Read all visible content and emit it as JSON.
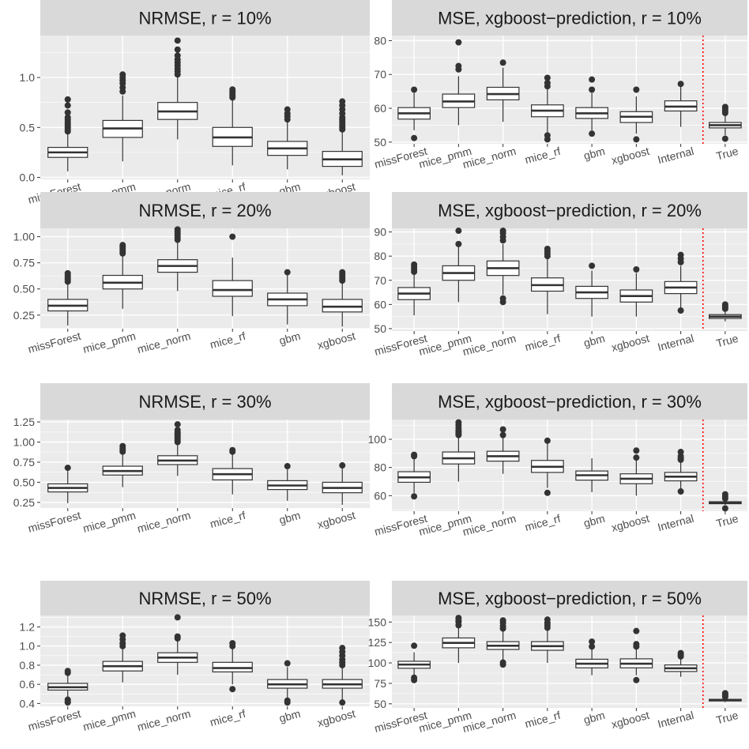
{
  "colors": {
    "panel_background": "#ebebeb",
    "strip_background": "#d9d9d9",
    "grid_major": "#ffffff",
    "box_stroke": "#333333",
    "box_fill": "#ffffff",
    "outlier": "#333333",
    "reference_line": "#ff0000"
  },
  "chart_data": [
    {
      "type": "boxplot",
      "title": "NRMSE, r = 10%",
      "categories": [
        "missForest",
        "mice_pmm",
        "mice_norm",
        "mice_rf",
        "gbm",
        "xgboost"
      ],
      "ylim": [
        -0.02,
        1.42
      ],
      "yticks": [
        0.0,
        0.5,
        1.0
      ],
      "ytick_labels": [
        "0.0",
        "0.5",
        "1.0"
      ],
      "boxes": [
        {
          "whislo": 0.06,
          "q1": 0.2,
          "med": 0.25,
          "q3": 0.3,
          "whishi": 0.44,
          "outliers": [
            0.46,
            0.48,
            0.5,
            0.52,
            0.54,
            0.56,
            0.58,
            0.6,
            0.65,
            0.72,
            0.78
          ]
        },
        {
          "whislo": 0.16,
          "q1": 0.4,
          "med": 0.49,
          "q3": 0.57,
          "whishi": 0.82,
          "outliers": [
            0.86,
            0.9,
            0.94,
            0.97,
            1.0,
            1.03
          ]
        },
        {
          "whislo": 0.38,
          "q1": 0.58,
          "med": 0.66,
          "q3": 0.75,
          "whishi": 1.0,
          "outliers": [
            1.03,
            1.06,
            1.09,
            1.12,
            1.15,
            1.18,
            1.22,
            1.28,
            1.37
          ]
        },
        {
          "whislo": 0.12,
          "q1": 0.31,
          "med": 0.4,
          "q3": 0.5,
          "whishi": 0.78,
          "outliers": [
            0.8,
            0.82,
            0.84,
            0.86,
            0.88
          ]
        },
        {
          "whislo": 0.08,
          "q1": 0.22,
          "med": 0.29,
          "q3": 0.36,
          "whishi": 0.55,
          "outliers": [
            0.58,
            0.61,
            0.64,
            0.68
          ]
        },
        {
          "whislo": 0.02,
          "q1": 0.11,
          "med": 0.18,
          "q3": 0.26,
          "whishi": 0.46,
          "outliers": [
            0.48,
            0.5,
            0.52,
            0.54,
            0.56,
            0.58,
            0.6,
            0.64,
            0.68,
            0.72,
            0.76
          ]
        }
      ]
    },
    {
      "type": "boxplot",
      "title": "MSE, xgboost−prediction, r = 10%",
      "categories": [
        "missForest",
        "mice_pmm",
        "mice_norm",
        "mice_rf",
        "gbm",
        "xgboost",
        "Internal",
        "True"
      ],
      "ylim": [
        49.5,
        81.5
      ],
      "yticks": [
        50,
        60,
        70,
        80
      ],
      "ytick_labels": [
        "50",
        "60",
        "70",
        "80"
      ],
      "reference_line_after_category": "Internal",
      "boxes": [
        {
          "whislo": 53.5,
          "q1": 56.8,
          "med": 58.5,
          "q3": 60.2,
          "whishi": 64.5,
          "outliers": [
            65.5,
            51.2
          ]
        },
        {
          "whislo": 55.0,
          "q1": 60.2,
          "med": 62.0,
          "q3": 64.2,
          "whishi": 69.5,
          "outliers": [
            71.5,
            72.5,
            79.5
          ]
        },
        {
          "whislo": 56.0,
          "q1": 62.5,
          "med": 64.2,
          "q3": 66.2,
          "whishi": 72.0,
          "outliers": [
            73.5
          ]
        },
        {
          "whislo": 53.0,
          "q1": 57.5,
          "med": 59.3,
          "q3": 61.0,
          "whishi": 66.0,
          "outliers": [
            66.5,
            67.5,
            69.0,
            52.0,
            50.8
          ]
        },
        {
          "whislo": 53.5,
          "q1": 57.0,
          "med": 58.5,
          "q3": 60.2,
          "whishi": 64.5,
          "outliers": [
            65.5,
            68.5,
            52.5
          ]
        },
        {
          "whislo": 52.5,
          "q1": 55.8,
          "med": 57.5,
          "q3": 59.0,
          "whishi": 63.5,
          "outliers": [
            65.5,
            50.8
          ]
        },
        {
          "whislo": 54.5,
          "q1": 59.2,
          "med": 60.5,
          "q3": 62.2,
          "whishi": 66.5,
          "outliers": [
            67.2
          ]
        },
        {
          "whislo": 52.0,
          "q1": 54.2,
          "med": 55.0,
          "q3": 55.8,
          "whishi": 58.0,
          "outliers": [
            58.6,
            59.2,
            59.8,
            60.4,
            51.0
          ]
        }
      ]
    },
    {
      "type": "boxplot",
      "title": "NRMSE, r = 20%",
      "categories": [
        "missForest",
        "mice_pmm",
        "mice_norm",
        "mice_rf",
        "gbm",
        "xgboost"
      ],
      "ylim": [
        0.12,
        1.08
      ],
      "yticks": [
        0.25,
        0.5,
        0.75,
        1.0
      ],
      "ytick_labels": [
        "0.25",
        "0.50",
        "0.75",
        "1.00"
      ],
      "boxes": [
        {
          "whislo": 0.15,
          "q1": 0.29,
          "med": 0.34,
          "q3": 0.4,
          "whishi": 0.55,
          "outliers": [
            0.57,
            0.59,
            0.61,
            0.63,
            0.65
          ]
        },
        {
          "whislo": 0.31,
          "q1": 0.5,
          "med": 0.56,
          "q3": 0.63,
          "whishi": 0.82,
          "outliers": [
            0.84,
            0.86,
            0.88,
            0.9,
            0.92
          ]
        },
        {
          "whislo": 0.48,
          "q1": 0.66,
          "med": 0.72,
          "q3": 0.78,
          "whishi": 0.95,
          "outliers": [
            0.97,
            0.99,
            1.01,
            1.03,
            1.05,
            1.07
          ]
        },
        {
          "whislo": 0.24,
          "q1": 0.43,
          "med": 0.49,
          "q3": 0.58,
          "whishi": 0.8,
          "outliers": [
            1.0
          ]
        },
        {
          "whislo": 0.16,
          "q1": 0.34,
          "med": 0.4,
          "q3": 0.46,
          "whishi": 0.65,
          "outliers": [
            0.66
          ]
        },
        {
          "whislo": 0.14,
          "q1": 0.28,
          "med": 0.33,
          "q3": 0.4,
          "whishi": 0.56,
          "outliers": [
            0.58,
            0.6,
            0.62,
            0.64,
            0.66
          ]
        }
      ]
    },
    {
      "type": "boxplot",
      "title": "MSE, xgboost−prediction, r = 20%",
      "categories": [
        "missForest",
        "mice_pmm",
        "mice_norm",
        "mice_rf",
        "gbm",
        "xgboost",
        "Internal",
        "True"
      ],
      "ylim": [
        49,
        91.5
      ],
      "yticks": [
        50,
        60,
        70,
        80,
        90
      ],
      "ytick_labels": [
        "50",
        "60",
        "70",
        "80",
        "90"
      ],
      "reference_line_after_category": "Internal",
      "boxes": [
        {
          "whislo": 55.5,
          "q1": 62.0,
          "med": 64.5,
          "q3": 67.0,
          "whishi": 72.5,
          "outliers": [
            73.5,
            74.5,
            75.5,
            76.5
          ]
        },
        {
          "whislo": 61.0,
          "q1": 70.0,
          "med": 73.0,
          "q3": 76.0,
          "whishi": 84.0,
          "outliers": [
            85.0,
            90.5
          ]
        },
        {
          "whislo": 64.0,
          "q1": 72.0,
          "med": 75.0,
          "q3": 78.0,
          "whishi": 85.0,
          "outliers": [
            86.5,
            88.0,
            89.5,
            90.5,
            62.5,
            61.0
          ]
        },
        {
          "whislo": 56.0,
          "q1": 65.5,
          "med": 68.0,
          "q3": 71.0,
          "whishi": 79.0,
          "outliers": [
            80.0,
            81.0,
            82.0,
            83.0
          ]
        },
        {
          "whislo": 55.0,
          "q1": 62.5,
          "med": 65.0,
          "q3": 67.5,
          "whishi": 74.0,
          "outliers": [
            76.0
          ]
        },
        {
          "whislo": 55.0,
          "q1": 61.0,
          "med": 63.5,
          "q3": 66.0,
          "whishi": 73.0,
          "outliers": [
            74.5
          ]
        },
        {
          "whislo": 58.5,
          "q1": 64.5,
          "med": 67.0,
          "q3": 69.5,
          "whishi": 76.0,
          "outliers": [
            77.5,
            79.0,
            80.5,
            57.5
          ]
        },
        {
          "whislo": 53.0,
          "q1": 54.2,
          "med": 55.0,
          "q3": 55.8,
          "whishi": 57.5,
          "outliers": [
            58.2,
            58.8,
            59.4,
            60.0
          ]
        }
      ]
    },
    {
      "type": "boxplot",
      "title": "NRMSE, r = 30%",
      "categories": [
        "missForest",
        "mice_pmm",
        "mice_norm",
        "mice_rf",
        "gbm",
        "xgboost"
      ],
      "ylim": [
        0.18,
        1.28
      ],
      "yticks": [
        0.25,
        0.5,
        0.75,
        1.0,
        1.25
      ],
      "ytick_labels": [
        "0.25",
        "0.50",
        "0.75",
        "1.00",
        "1.25"
      ],
      "boxes": [
        {
          "whislo": 0.24,
          "q1": 0.38,
          "med": 0.43,
          "q3": 0.48,
          "whishi": 0.64,
          "outliers": [
            0.68
          ]
        },
        {
          "whislo": 0.44,
          "q1": 0.59,
          "med": 0.64,
          "q3": 0.7,
          "whishi": 0.86,
          "outliers": [
            0.88,
            0.9,
            0.92,
            0.95
          ]
        },
        {
          "whislo": 0.58,
          "q1": 0.72,
          "med": 0.77,
          "q3": 0.83,
          "whishi": 0.99,
          "outliers": [
            1.0,
            1.02,
            1.04,
            1.06,
            1.08,
            1.1,
            1.12,
            1.15,
            1.22
          ]
        },
        {
          "whislo": 0.35,
          "q1": 0.53,
          "med": 0.6,
          "q3": 0.67,
          "whishi": 0.86,
          "outliers": [
            0.88,
            0.9
          ]
        },
        {
          "whislo": 0.27,
          "q1": 0.41,
          "med": 0.46,
          "q3": 0.52,
          "whishi": 0.66,
          "outliers": [
            0.7
          ]
        },
        {
          "whislo": 0.22,
          "q1": 0.37,
          "med": 0.43,
          "q3": 0.5,
          "whishi": 0.69,
          "outliers": [
            0.71
          ]
        }
      ]
    },
    {
      "type": "boxplot",
      "title": "MSE, xgboost−prediction, r = 30%",
      "categories": [
        "missForest",
        "mice_pmm",
        "mice_norm",
        "mice_rf",
        "gbm",
        "xgboost",
        "Internal",
        "True"
      ],
      "ylim": [
        49,
        114
      ],
      "yticks": [
        60,
        80,
        100
      ],
      "ytick_labels": [
        "60",
        "80",
        "100"
      ],
      "reference_line_after_category": "Internal",
      "boxes": [
        {
          "whislo": 62.0,
          "q1": 69.5,
          "med": 73.0,
          "q3": 77.0,
          "whishi": 87.0,
          "outliers": [
            88.0,
            89.0,
            59.5
          ]
        },
        {
          "whislo": 70.0,
          "q1": 82.5,
          "med": 86.5,
          "q3": 91.0,
          "whishi": 102.0,
          "outliers": [
            103.0,
            104.0,
            105.0,
            106.0,
            108.0,
            110.0,
            112.0
          ]
        },
        {
          "whislo": 75.5,
          "q1": 84.5,
          "med": 88.0,
          "q3": 91.5,
          "whishi": 101.0,
          "outliers": [
            103.0,
            107.0
          ]
        },
        {
          "whislo": 65.5,
          "q1": 76.5,
          "med": 80.5,
          "q3": 85.0,
          "whishi": 97.0,
          "outliers": [
            99.0,
            62.0
          ]
        },
        {
          "whislo": 62.5,
          "q1": 71.0,
          "med": 74.5,
          "q3": 77.5,
          "whishi": 86.5,
          "outliers": []
        },
        {
          "whislo": 60.0,
          "q1": 68.5,
          "med": 72.0,
          "q3": 75.5,
          "whishi": 85.0,
          "outliers": [
            87.0,
            92.0
          ]
        },
        {
          "whislo": 64.0,
          "q1": 70.5,
          "med": 73.5,
          "q3": 76.5,
          "whishi": 84.5,
          "outliers": [
            85.5,
            86.5,
            88.0,
            91.0,
            63.0
          ]
        },
        {
          "whislo": 53.5,
          "q1": 54.3,
          "med": 55.0,
          "q3": 55.7,
          "whishi": 57.0,
          "outliers": [
            58.0,
            59.5,
            61.0,
            51.0
          ]
        }
      ]
    },
    {
      "type": "boxplot",
      "title": "NRMSE, r = 50%",
      "categories": [
        "missForest",
        "mice_pmm",
        "mice_norm",
        "mice_rf",
        "gbm",
        "xgboost"
      ],
      "ylim": [
        0.37,
        1.32
      ],
      "yticks": [
        0.4,
        0.6,
        0.8,
        1.0,
        1.2
      ],
      "ytick_labels": [
        "0.4",
        "0.6",
        "0.8",
        "1.0",
        "1.2"
      ],
      "boxes": [
        {
          "whislo": 0.45,
          "q1": 0.54,
          "med": 0.57,
          "q3": 0.61,
          "whishi": 0.7,
          "outliers": [
            0.72,
            0.74,
            0.44,
            0.42,
            0.41
          ]
        },
        {
          "whislo": 0.62,
          "q1": 0.74,
          "med": 0.79,
          "q3": 0.84,
          "whishi": 0.98,
          "outliers": [
            1.0,
            1.03,
            1.07,
            1.11
          ]
        },
        {
          "whislo": 0.7,
          "q1": 0.83,
          "med": 0.88,
          "q3": 0.93,
          "whishi": 1.06,
          "outliers": [
            1.08,
            1.1,
            1.3
          ]
        },
        {
          "whislo": 0.6,
          "q1": 0.73,
          "med": 0.77,
          "q3": 0.83,
          "whishi": 0.98,
          "outliers": [
            1.0,
            1.03,
            0.55
          ]
        },
        {
          "whislo": 0.46,
          "q1": 0.56,
          "med": 0.6,
          "q3": 0.65,
          "whishi": 0.78,
          "outliers": [
            0.82,
            0.43,
            0.41
          ]
        },
        {
          "whislo": 0.44,
          "q1": 0.56,
          "med": 0.6,
          "q3": 0.65,
          "whishi": 0.78,
          "outliers": [
            0.8,
            0.83,
            0.86,
            0.9,
            0.94,
            0.98,
            0.41
          ]
        }
      ]
    },
    {
      "type": "boxplot",
      "title": "MSE, xgboost−prediction, r = 50%",
      "categories": [
        "missForest",
        "mice_pmm",
        "mice_norm",
        "mice_rf",
        "gbm",
        "xgboost",
        "Internal",
        "True"
      ],
      "ylim": [
        45,
        158
      ],
      "yticks": [
        50,
        75,
        100,
        125,
        150
      ],
      "ytick_labels": [
        "50",
        "75",
        "100",
        "125",
        "150"
      ],
      "reference_line_after_category": "Internal",
      "boxes": [
        {
          "whislo": 84.0,
          "q1": 93.5,
          "med": 98.0,
          "q3": 102.0,
          "whishi": 113.0,
          "outliers": [
            121.0,
            82.0,
            79.0
          ]
        },
        {
          "whislo": 100.0,
          "q1": 118.5,
          "med": 124.5,
          "q3": 130.5,
          "whishi": 143.0,
          "outliers": [
            146.0,
            150.0,
            152.0,
            155.0
          ]
        },
        {
          "whislo": 100.0,
          "q1": 116.5,
          "med": 121.0,
          "q3": 126.0,
          "whishi": 140.0,
          "outliers": [
            142.0,
            145.0,
            149.0,
            152.0,
            100.5,
            98.0
          ]
        },
        {
          "whislo": 100.0,
          "q1": 115.5,
          "med": 120.5,
          "q3": 126.0,
          "whishi": 140.0,
          "outliers": [
            143.0,
            146.0,
            149.0,
            153.0
          ]
        },
        {
          "whislo": 85.0,
          "q1": 94.0,
          "med": 99.0,
          "q3": 104.5,
          "whishi": 117.0,
          "outliers": [
            120.0,
            126.0
          ]
        },
        {
          "whislo": 85.0,
          "q1": 94.0,
          "med": 99.0,
          "q3": 105.0,
          "whishi": 118.0,
          "outliers": [
            120.0,
            123.0,
            139.0,
            79.0
          ]
        },
        {
          "whislo": 83.0,
          "q1": 89.5,
          "med": 93.5,
          "q3": 97.5,
          "whishi": 107.0,
          "outliers": [
            108.0,
            110.0,
            112.0
          ]
        },
        {
          "whislo": 52.0,
          "q1": 53.5,
          "med": 54.5,
          "q3": 55.5,
          "whishi": 57.5,
          "outliers": [
            58.5,
            60.0,
            61.5,
            63.0
          ]
        }
      ]
    }
  ]
}
